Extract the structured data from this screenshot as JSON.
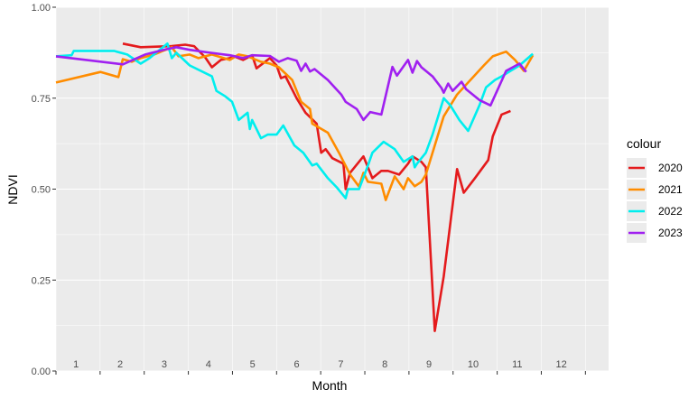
{
  "chart_data": {
    "type": "line",
    "xlabel": "Month",
    "ylabel": "NDVI",
    "xlim": [
      0,
      12.4
    ],
    "ylim": [
      0,
      1
    ],
    "yticks": [
      "0.00",
      "0.25",
      "0.50",
      "0.75",
      "1.00"
    ],
    "xticks": [
      "1",
      "2",
      "3",
      "4",
      "5",
      "6",
      "7",
      "8",
      "9",
      "10",
      "11",
      "12"
    ],
    "grid": true,
    "legend": {
      "title": "colour",
      "position": "right"
    },
    "series": [
      {
        "name": "2020",
        "color": "#e41a1c",
        "points": [
          [
            1.5,
            0.9
          ],
          [
            1.9,
            0.89
          ],
          [
            2.6,
            0.893
          ],
          [
            2.9,
            0.897
          ],
          [
            3.1,
            0.893
          ],
          [
            3.35,
            0.862
          ],
          [
            3.5,
            0.835
          ],
          [
            3.7,
            0.855
          ],
          [
            3.9,
            0.86
          ],
          [
            4.0,
            0.865
          ],
          [
            4.2,
            0.855
          ],
          [
            4.4,
            0.868
          ],
          [
            4.5,
            0.832
          ],
          [
            4.8,
            0.86
          ],
          [
            4.95,
            0.84
          ],
          [
            5.05,
            0.805
          ],
          [
            5.15,
            0.81
          ],
          [
            5.4,
            0.75
          ],
          [
            5.6,
            0.71
          ],
          [
            5.85,
            0.68
          ],
          [
            5.95,
            0.6
          ],
          [
            6.05,
            0.61
          ],
          [
            6.2,
            0.585
          ],
          [
            6.45,
            0.57
          ],
          [
            6.5,
            0.5
          ],
          [
            6.6,
            0.545
          ],
          [
            6.9,
            0.59
          ],
          [
            7.1,
            0.53
          ],
          [
            7.3,
            0.55
          ],
          [
            7.45,
            0.55
          ],
          [
            7.7,
            0.54
          ],
          [
            7.9,
            0.57
          ],
          [
            8.0,
            0.59
          ],
          [
            8.2,
            0.575
          ],
          [
            8.3,
            0.56
          ],
          [
            8.5,
            0.11
          ],
          [
            8.7,
            0.26
          ],
          [
            9.0,
            0.555
          ],
          [
            9.15,
            0.49
          ],
          [
            9.4,
            0.53
          ],
          [
            9.7,
            0.58
          ],
          [
            9.8,
            0.645
          ],
          [
            10.0,
            0.705
          ],
          [
            10.2,
            0.715
          ]
        ]
      },
      {
        "name": "2021",
        "color": "#ff8c00",
        "points": [
          [
            0.0,
            0.793
          ],
          [
            1.0,
            0.822
          ],
          [
            1.4,
            0.808
          ],
          [
            1.5,
            0.857
          ],
          [
            1.7,
            0.85
          ],
          [
            1.9,
            0.86
          ],
          [
            2.2,
            0.87
          ],
          [
            2.6,
            0.89
          ],
          [
            2.75,
            0.865
          ],
          [
            3.0,
            0.87
          ],
          [
            3.2,
            0.86
          ],
          [
            3.5,
            0.87
          ],
          [
            3.9,
            0.855
          ],
          [
            4.1,
            0.87
          ],
          [
            4.3,
            0.865
          ],
          [
            4.6,
            0.85
          ],
          [
            4.8,
            0.845
          ],
          [
            5.0,
            0.835
          ],
          [
            5.3,
            0.8
          ],
          [
            5.5,
            0.74
          ],
          [
            5.7,
            0.72
          ],
          [
            5.75,
            0.68
          ],
          [
            6.1,
            0.655
          ],
          [
            6.35,
            0.6
          ],
          [
            6.6,
            0.54
          ],
          [
            6.8,
            0.507
          ],
          [
            6.9,
            0.545
          ],
          [
            7.0,
            0.52
          ],
          [
            7.3,
            0.515
          ],
          [
            7.4,
            0.47
          ],
          [
            7.6,
            0.535
          ],
          [
            7.8,
            0.5
          ],
          [
            7.9,
            0.53
          ],
          [
            8.05,
            0.508
          ],
          [
            8.2,
            0.52
          ],
          [
            8.3,
            0.54
          ],
          [
            8.5,
            0.62
          ],
          [
            8.7,
            0.7
          ],
          [
            9.0,
            0.76
          ],
          [
            9.6,
            0.84
          ],
          [
            9.8,
            0.865
          ],
          [
            10.1,
            0.878
          ],
          [
            10.3,
            0.855
          ],
          [
            10.5,
            0.825
          ],
          [
            10.7,
            0.868
          ]
        ]
      },
      {
        "name": "2022",
        "color": "#00eeee",
        "points": [
          [
            0.0,
            0.865
          ],
          [
            0.35,
            0.868
          ],
          [
            0.4,
            0.88
          ],
          [
            1.3,
            0.88
          ],
          [
            1.6,
            0.87
          ],
          [
            1.9,
            0.845
          ],
          [
            2.1,
            0.86
          ],
          [
            2.5,
            0.9
          ],
          [
            2.6,
            0.86
          ],
          [
            2.7,
            0.875
          ],
          [
            3.0,
            0.84
          ],
          [
            3.5,
            0.81
          ],
          [
            3.6,
            0.77
          ],
          [
            3.8,
            0.755
          ],
          [
            3.95,
            0.74
          ],
          [
            4.1,
            0.69
          ],
          [
            4.2,
            0.7
          ],
          [
            4.3,
            0.71
          ],
          [
            4.35,
            0.665
          ],
          [
            4.4,
            0.69
          ],
          [
            4.6,
            0.64
          ],
          [
            4.75,
            0.65
          ],
          [
            4.95,
            0.65
          ],
          [
            5.1,
            0.675
          ],
          [
            5.35,
            0.62
          ],
          [
            5.55,
            0.6
          ],
          [
            5.75,
            0.565
          ],
          [
            5.85,
            0.57
          ],
          [
            6.1,
            0.53
          ],
          [
            6.3,
            0.505
          ],
          [
            6.5,
            0.475
          ],
          [
            6.55,
            0.5
          ],
          [
            6.8,
            0.5
          ],
          [
            7.0,
            0.565
          ],
          [
            7.1,
            0.6
          ],
          [
            7.35,
            0.63
          ],
          [
            7.6,
            0.61
          ],
          [
            7.8,
            0.575
          ],
          [
            8.0,
            0.59
          ],
          [
            8.05,
            0.56
          ],
          [
            8.1,
            0.57
          ],
          [
            8.3,
            0.6
          ],
          [
            8.45,
            0.65
          ],
          [
            8.7,
            0.75
          ],
          [
            8.85,
            0.73
          ],
          [
            9.05,
            0.69
          ],
          [
            9.25,
            0.66
          ],
          [
            9.5,
            0.73
          ],
          [
            9.65,
            0.78
          ],
          [
            9.85,
            0.8
          ],
          [
            10.0,
            0.81
          ],
          [
            10.2,
            0.825
          ],
          [
            10.4,
            0.84
          ],
          [
            10.7,
            0.872
          ]
        ]
      },
      {
        "name": "2023",
        "color": "#a020f0",
        "points": [
          [
            0.0,
            0.865
          ],
          [
            1.5,
            0.843
          ],
          [
            2.0,
            0.87
          ],
          [
            2.5,
            0.885
          ],
          [
            2.7,
            0.89
          ],
          [
            3.0,
            0.883
          ],
          [
            3.4,
            0.876
          ],
          [
            3.9,
            0.868
          ],
          [
            4.2,
            0.86
          ],
          [
            4.4,
            0.868
          ],
          [
            4.8,
            0.866
          ],
          [
            5.0,
            0.85
          ],
          [
            5.2,
            0.86
          ],
          [
            5.4,
            0.853
          ],
          [
            5.5,
            0.825
          ],
          [
            5.6,
            0.845
          ],
          [
            5.7,
            0.823
          ],
          [
            5.8,
            0.83
          ],
          [
            6.1,
            0.8
          ],
          [
            6.4,
            0.76
          ],
          [
            6.5,
            0.74
          ],
          [
            6.75,
            0.72
          ],
          [
            6.9,
            0.69
          ],
          [
            7.05,
            0.712
          ],
          [
            7.3,
            0.705
          ],
          [
            7.55,
            0.836
          ],
          [
            7.65,
            0.812
          ],
          [
            7.9,
            0.855
          ],
          [
            8.0,
            0.82
          ],
          [
            8.1,
            0.852
          ],
          [
            8.2,
            0.835
          ],
          [
            8.45,
            0.81
          ],
          [
            8.65,
            0.778
          ],
          [
            8.7,
            0.765
          ],
          [
            8.8,
            0.79
          ],
          [
            8.9,
            0.77
          ],
          [
            9.1,
            0.795
          ],
          [
            9.2,
            0.775
          ],
          [
            9.5,
            0.745
          ],
          [
            9.75,
            0.73
          ],
          [
            10.1,
            0.825
          ],
          [
            10.4,
            0.845
          ],
          [
            10.55,
            0.822
          ]
        ]
      }
    ]
  }
}
